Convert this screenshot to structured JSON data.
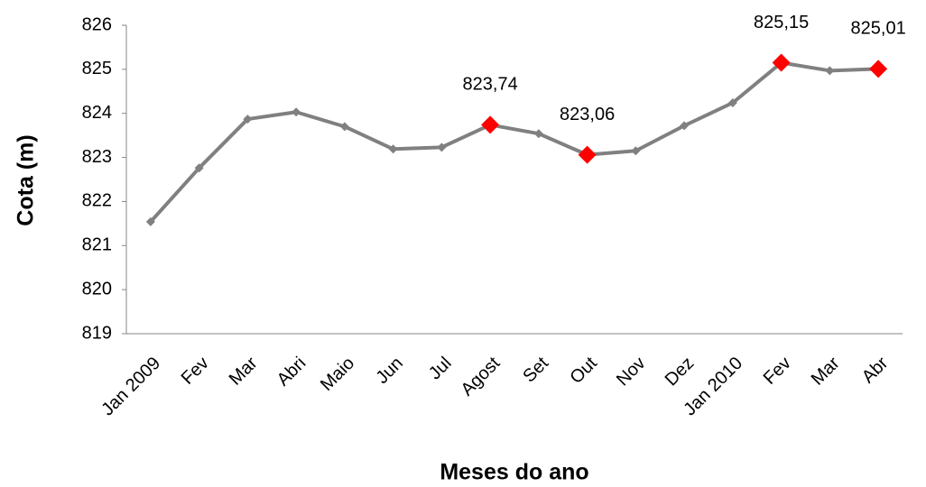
{
  "chart_data": {
    "type": "line",
    "x_label": "Meses do ano",
    "y_label": "Cota (m)",
    "categories": [
      "Jan 2009",
      "Fev",
      "Mar",
      "Abri",
      "Maio",
      "Jun",
      "Jul",
      "Agost",
      "Set",
      "Out",
      "Nov",
      "Dez",
      "Jan 2010",
      "Fev",
      "Mar",
      "Abr"
    ],
    "series": [
      {
        "color": "#808080",
        "highlight_color": "#ff0000",
        "values": [
          821.54,
          822.76,
          823.87,
          824.03,
          823.7,
          823.19,
          823.23,
          823.74,
          823.54,
          823.06,
          823.15,
          823.72,
          824.24,
          825.15,
          824.97,
          825.01
        ],
        "value_labels": [
          null,
          null,
          null,
          null,
          null,
          null,
          null,
          "823,74",
          null,
          "823,06",
          null,
          null,
          null,
          "825,15",
          null,
          "825,01"
        ]
      }
    ],
    "ylim": [
      819,
      826
    ],
    "yticks": [
      819,
      820,
      821,
      822,
      823,
      824,
      825,
      826
    ],
    "grid": false
  }
}
